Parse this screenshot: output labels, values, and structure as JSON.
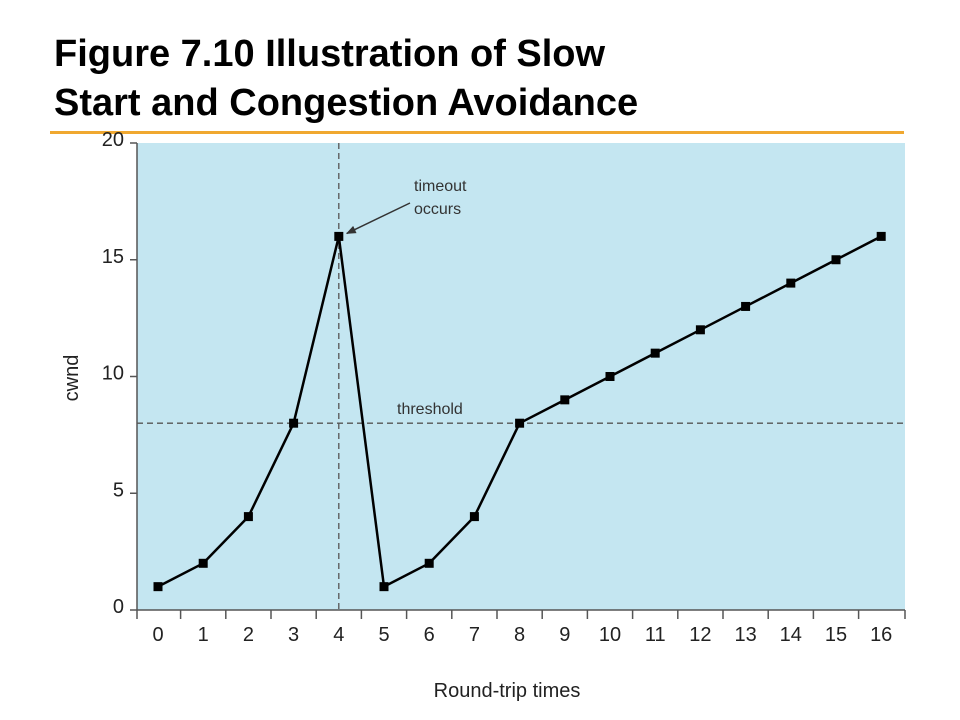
{
  "slide": {
    "title_line1": "Figure 7.10 Illustration of Slow",
    "title_line2": "Start and Congestion Avoidance",
    "accent_color": "#f0a830"
  },
  "chart_data": {
    "type": "line",
    "title": "",
    "xlabel": "Round-trip times",
    "ylabel": "cwnd",
    "xlim": [
      0,
      16
    ],
    "ylim": [
      0,
      20
    ],
    "x_ticks": [
      "0",
      "1",
      "2",
      "3",
      "4",
      "5",
      "6",
      "7",
      "8",
      "9",
      "10",
      "11",
      "12",
      "13",
      "14",
      "15",
      "16"
    ],
    "y_ticks": [
      "0",
      "5",
      "10",
      "15",
      "20"
    ],
    "series": [
      {
        "x": [
          0,
          1,
          2,
          3,
          4,
          5,
          6,
          7,
          8,
          9,
          10,
          11,
          12,
          13,
          14,
          15,
          16
        ],
        "values": [
          1,
          2,
          4,
          8,
          16,
          1,
          2,
          4,
          8,
          9,
          10,
          11,
          12,
          13,
          14,
          15,
          16
        ]
      }
    ],
    "reference_lines": {
      "threshold": {
        "value": 8,
        "label": "threshold"
      },
      "timeout": {
        "x": 4,
        "label_line1": "timeout",
        "label_line2": "occurs"
      }
    },
    "plot_background": "#c4e6f1",
    "line_color": "#000000",
    "grid": false,
    "legend": "none"
  }
}
